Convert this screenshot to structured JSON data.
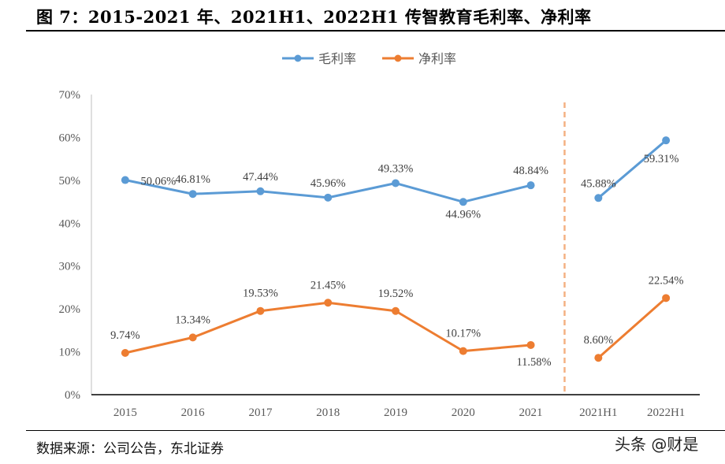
{
  "title": "图 7：2015-2021 年、2021H1、2022H1 传智教育毛利率、净利率",
  "source": "数据来源：公司公告，东北证券",
  "watermark": "头条 @财是",
  "chart_data": {
    "type": "line",
    "categories": [
      "2015",
      "2016",
      "2017",
      "2018",
      "2019",
      "2020",
      "2021",
      "2021H1",
      "2022H1"
    ],
    "ylim": [
      0,
      70
    ],
    "yticks": [
      "0%",
      "10%",
      "20%",
      "30%",
      "40%",
      "50%",
      "60%",
      "70%"
    ],
    "grid": false,
    "legend_position": "top",
    "break_between": [
      "2021",
      "2021H1"
    ],
    "series": [
      {
        "name": "毛利率",
        "color": "#5B9BD5",
        "values": [
          50.06,
          46.81,
          47.44,
          45.96,
          49.33,
          44.96,
          48.84,
          45.88,
          59.31
        ],
        "labels": [
          "50.06%",
          "46.81%",
          "47.44%",
          "45.96%",
          "49.33%",
          "44.96%",
          "48.84%",
          "45.88%",
          "59.31%"
        ]
      },
      {
        "name": "净利率",
        "color": "#ED7D31",
        "values": [
          9.74,
          13.34,
          19.53,
          21.45,
          19.52,
          10.17,
          11.58,
          8.6,
          22.54
        ],
        "labels": [
          "9.74%",
          "13.34%",
          "19.53%",
          "21.45%",
          "19.52%",
          "10.17%",
          "11.58%",
          "8.60%",
          "22.54%"
        ]
      }
    ],
    "divider_color": "#F4B183"
  }
}
